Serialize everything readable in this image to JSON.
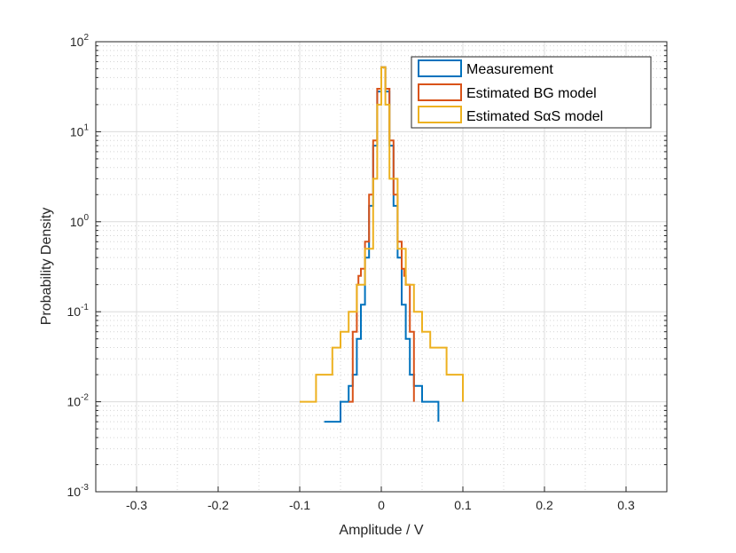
{
  "chart_data": {
    "type": "line",
    "subtype": "stairs-histogram",
    "title": "",
    "xlabel": "Amplitude / V",
    "ylabel": "Probability Density",
    "xlim": [
      -0.35,
      0.35
    ],
    "ylim": [
      0.001,
      100
    ],
    "yscale": "log",
    "grid": true,
    "minor_grid": true,
    "legend_position": "top-right",
    "x_ticks": [
      -0.3,
      -0.2,
      -0.1,
      0,
      0.1,
      0.2,
      0.3
    ],
    "x_tick_labels": [
      "-0.3",
      "-0.2",
      "-0.1",
      "0",
      "0.1",
      "0.2",
      "0.3"
    ],
    "y_ticks": [
      0.001,
      0.01,
      0.1,
      1,
      10,
      100
    ],
    "y_tick_labels": [
      {
        "base": "10",
        "exp": "-3"
      },
      {
        "base": "10",
        "exp": "-2"
      },
      {
        "base": "10",
        "exp": "-1"
      },
      {
        "base": "10",
        "exp": "0"
      },
      {
        "base": "10",
        "exp": "1"
      },
      {
        "base": "10",
        "exp": "2"
      }
    ],
    "series": [
      {
        "name": "Measurement",
        "legend_label": "Measurement",
        "color": "#0072BD",
        "x": [
          -0.07,
          -0.05,
          -0.04,
          -0.035,
          -0.03,
          -0.025,
          -0.02,
          -0.015,
          -0.01,
          -0.005,
          0.0,
          0.005,
          0.01,
          0.015,
          0.02,
          0.025,
          0.03,
          0.035,
          0.04,
          0.05,
          0.07
        ],
        "values": [
          0.006,
          0.01,
          0.015,
          0.02,
          0.05,
          0.12,
          0.4,
          1.5,
          7,
          28,
          52,
          28,
          7,
          1.5,
          0.4,
          0.12,
          0.05,
          0.02,
          0.015,
          0.01,
          0.006
        ]
      },
      {
        "name": "Estimated BG model",
        "legend_label": "Estimated BG model",
        "color": "#D95319",
        "x": [
          -0.04,
          -0.035,
          -0.03,
          -0.028,
          -0.025,
          -0.02,
          -0.015,
          -0.01,
          -0.005,
          0.0,
          0.005,
          0.01,
          0.015,
          0.02,
          0.025,
          0.028,
          0.03,
          0.035,
          0.04
        ],
        "values": [
          0.01,
          0.06,
          0.2,
          0.25,
          0.3,
          0.6,
          2,
          8,
          30,
          52,
          30,
          8,
          2,
          0.6,
          0.3,
          0.25,
          0.2,
          0.06,
          0.01
        ]
      },
      {
        "name": "Estimated SαS model",
        "legend_label": "Estimated SαS model",
        "color": "#EDB120",
        "x": [
          -0.1,
          -0.08,
          -0.06,
          -0.05,
          -0.04,
          -0.03,
          -0.02,
          -0.01,
          -0.005,
          0.0,
          0.005,
          0.01,
          0.02,
          0.03,
          0.04,
          0.05,
          0.06,
          0.08,
          0.1
        ],
        "values": [
          0.01,
          0.02,
          0.04,
          0.06,
          0.1,
          0.2,
          0.5,
          3,
          20,
          52,
          20,
          3,
          0.5,
          0.2,
          0.1,
          0.06,
          0.04,
          0.02,
          0.01
        ]
      }
    ]
  }
}
